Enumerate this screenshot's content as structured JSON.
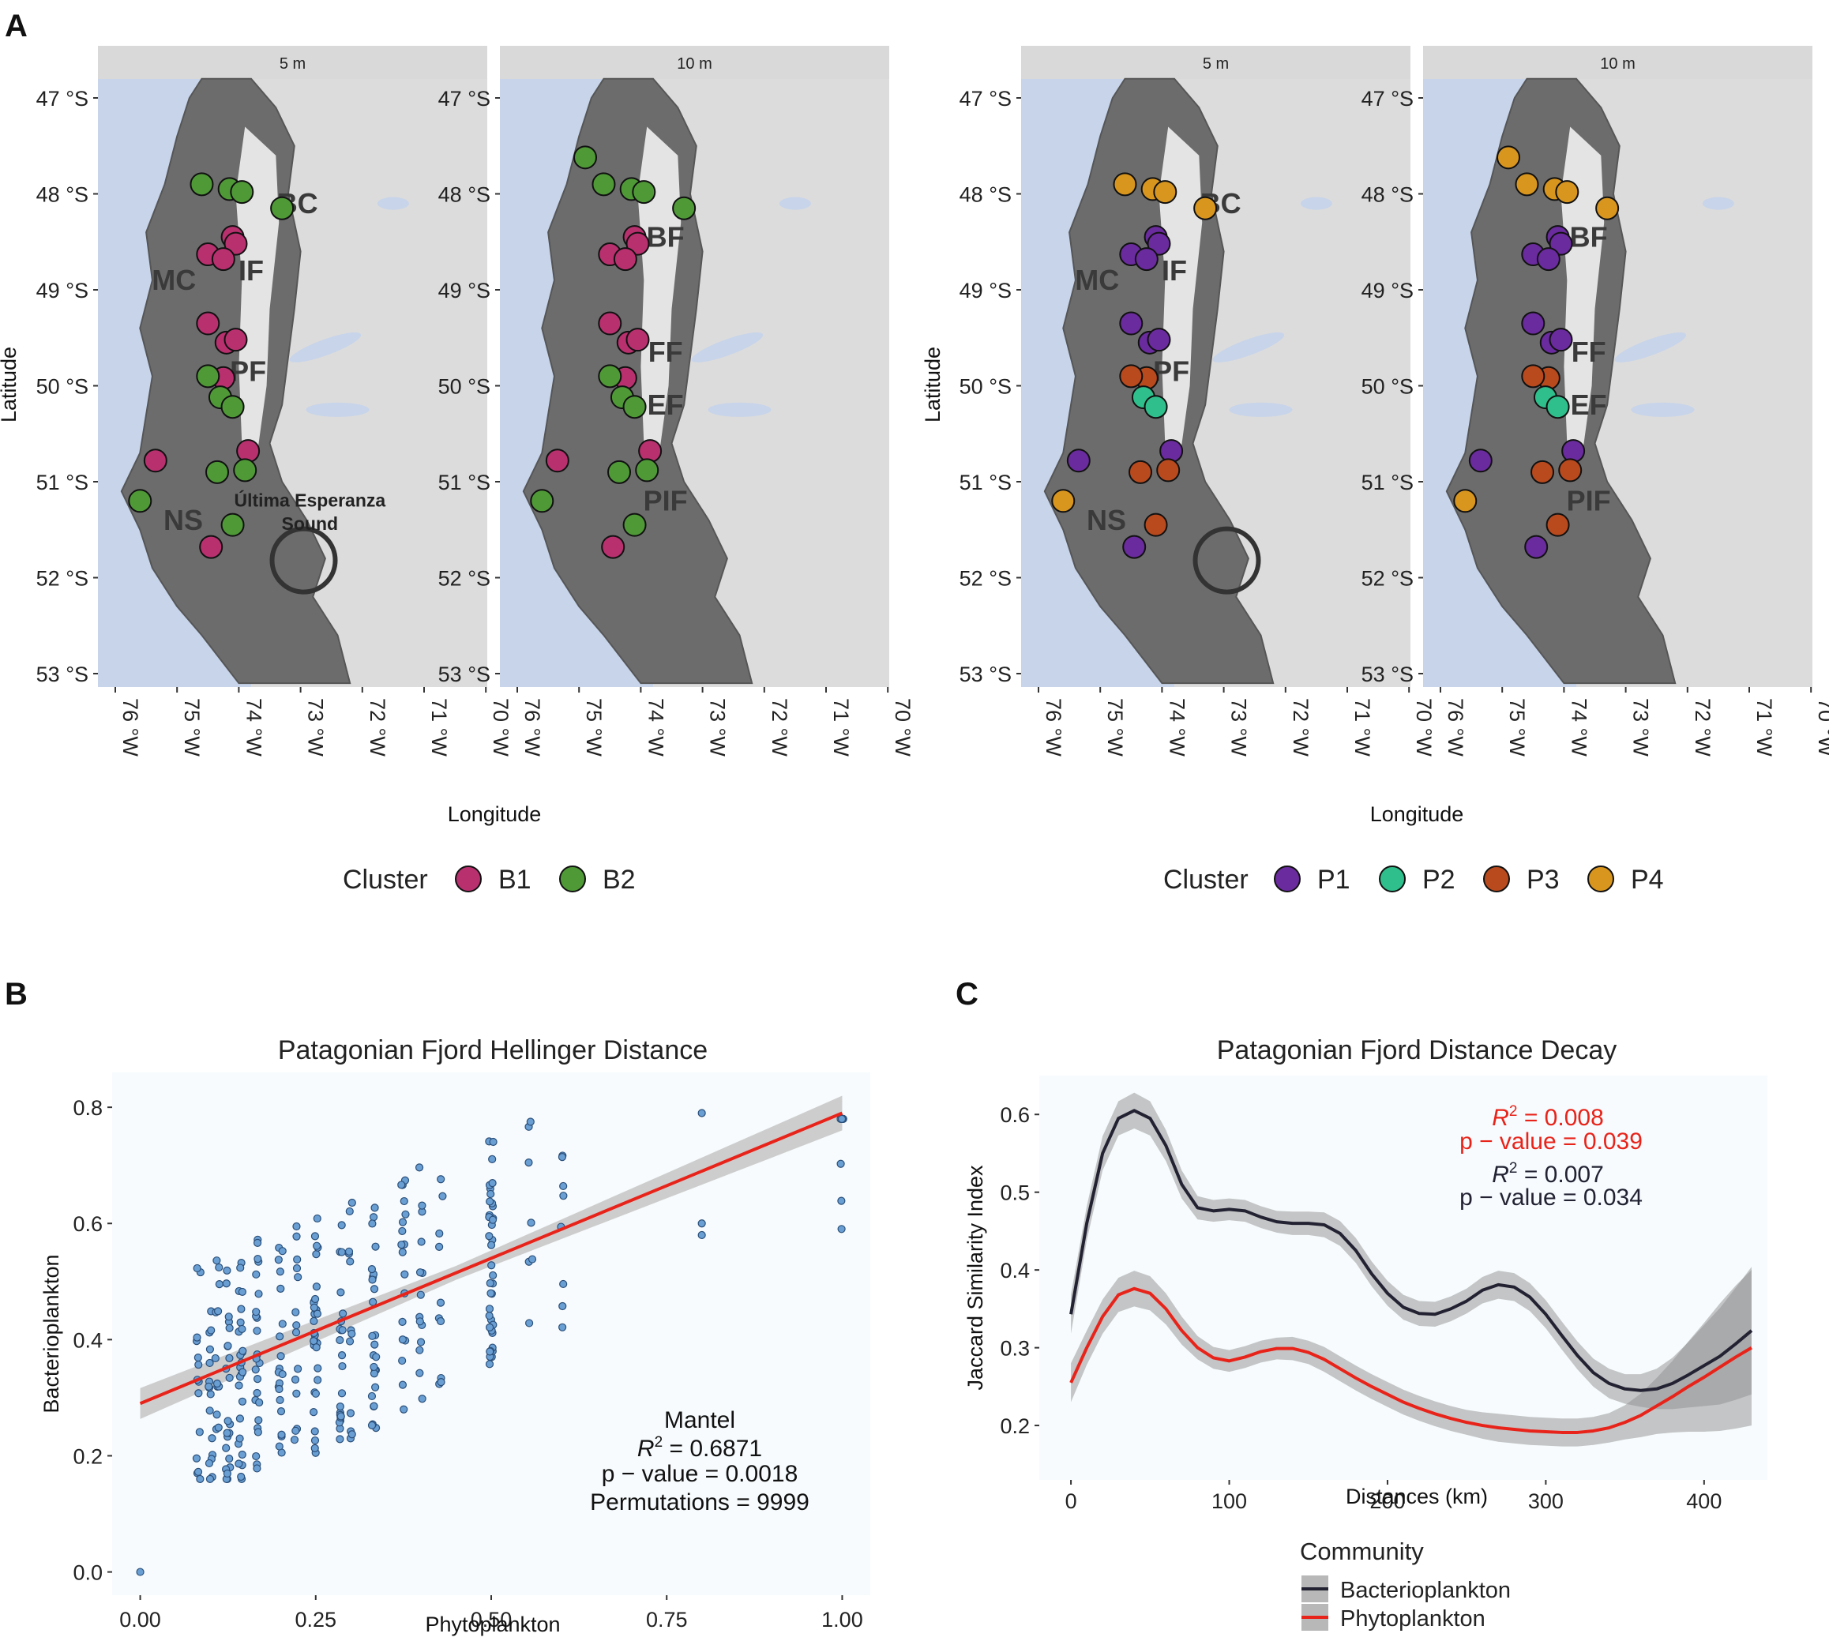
{
  "figure": {
    "letters": {
      "a": "A",
      "b": "B",
      "c": "C"
    }
  },
  "panel_a": {
    "strips": [
      "5 m",
      "10 m"
    ],
    "lat_ticks": [
      "47 °S",
      "48 °S",
      "49 °S",
      "50 °S",
      "51 °S",
      "52 °S",
      "53 °S"
    ],
    "lon_ticks": [
      "76 °W",
      "75 °W",
      "74 °W",
      "73 °W",
      "72 °W",
      "71 °W",
      "70 °W"
    ],
    "xlabel": "Longitude",
    "ylabel": "Latitude",
    "area_labels": {
      "BC": "BC",
      "IF": "IF",
      "MC": "MC",
      "PF": "PF",
      "NS": "NS",
      "BF": "BF",
      "FF": "FF",
      "EF": "EF",
      "PIF": "PIF",
      "sound1": "Última Esperanza",
      "sound2": "Sound"
    },
    "bacteria_legend": {
      "title": "Cluster",
      "items": [
        {
          "label": "B1",
          "color": "#b9306f"
        },
        {
          "label": "B2",
          "color": "#4f9a37"
        }
      ]
    },
    "phyto_legend": {
      "title": "Cluster",
      "items": [
        {
          "label": "P1",
          "color": "#6a2b9e"
        },
        {
          "label": "P2",
          "color": "#2fbf8c"
        },
        {
          "label": "P3",
          "color": "#b94a1e"
        },
        {
          "label": "P4",
          "color": "#d9961f"
        }
      ]
    },
    "stations": [
      {
        "lon": -74.6,
        "lat": -47.9,
        "b": "B2",
        "p": "P4"
      },
      {
        "lon": -74.15,
        "lat": -47.95,
        "b": "B2",
        "p": "P4"
      },
      {
        "lon": -73.95,
        "lat": -47.98,
        "b": "B2",
        "p": "P4"
      },
      {
        "lon": -73.3,
        "lat": -48.15,
        "b": "B2",
        "p": "P4"
      },
      {
        "lon": -74.1,
        "lat": -48.45,
        "b": "B1",
        "p": "P1"
      },
      {
        "lon": -74.05,
        "lat": -48.52,
        "b": "B1",
        "p": "P1"
      },
      {
        "lon": -74.5,
        "lat": -48.63,
        "b": "B1",
        "p": "P1"
      },
      {
        "lon": -74.25,
        "lat": -48.68,
        "b": "B1",
        "p": "P1"
      },
      {
        "lon": -74.5,
        "lat": -49.35,
        "b": "B1",
        "p": "P1"
      },
      {
        "lon": -74.2,
        "lat": -49.55,
        "b": "B1",
        "p": "P1"
      },
      {
        "lon": -74.05,
        "lat": -49.52,
        "b": "B1",
        "p": "P1"
      },
      {
        "lon": -74.25,
        "lat": -49.92,
        "b": "B1",
        "p": "P3"
      },
      {
        "lon": -74.5,
        "lat": -49.9,
        "b": "B2",
        "p": "P3"
      },
      {
        "lon": -74.3,
        "lat": -50.12,
        "b": "B2",
        "p": "P2"
      },
      {
        "lon": -74.1,
        "lat": -50.22,
        "b": "B2",
        "p": "P2"
      },
      {
        "lon": -75.35,
        "lat": -50.78,
        "b": "B1",
        "p": "P1"
      },
      {
        "lon": -73.85,
        "lat": -50.68,
        "b": "B1",
        "p": "P1"
      },
      {
        "lon": -74.35,
        "lat": -50.9,
        "b": "B2",
        "p": "P3"
      },
      {
        "lon": -73.9,
        "lat": -50.88,
        "b": "B2",
        "p": "P3"
      },
      {
        "lon": -75.6,
        "lat": -51.2,
        "b": "B2",
        "p": "P4"
      },
      {
        "lon": -74.1,
        "lat": -51.45,
        "b": "B2",
        "p": "P3"
      },
      {
        "lon": -74.45,
        "lat": -51.68,
        "b": "B1",
        "p": "P1"
      }
    ],
    "stations_10m": [
      {
        "lon": -74.9,
        "lat": -47.62,
        "b": "B2",
        "p": "P4"
      },
      {
        "lon": -74.6,
        "lat": -47.9,
        "b": "B2",
        "p": "P4"
      },
      {
        "lon": -74.15,
        "lat": -47.95,
        "b": "B2",
        "p": "P4"
      },
      {
        "lon": -73.95,
        "lat": -47.98,
        "b": "B2",
        "p": "P4"
      },
      {
        "lon": -73.3,
        "lat": -48.15,
        "b": "B2",
        "p": "P4"
      },
      {
        "lon": -74.1,
        "lat": -48.45,
        "b": "B1",
        "p": "P1"
      },
      {
        "lon": -74.05,
        "lat": -48.52,
        "b": "B1",
        "p": "P1"
      },
      {
        "lon": -74.5,
        "lat": -48.63,
        "b": "B1",
        "p": "P1"
      },
      {
        "lon": -74.25,
        "lat": -48.68,
        "b": "B1",
        "p": "P1"
      },
      {
        "lon": -74.5,
        "lat": -49.35,
        "b": "B1",
        "p": "P1"
      },
      {
        "lon": -74.2,
        "lat": -49.55,
        "b": "B1",
        "p": "P1"
      },
      {
        "lon": -74.05,
        "lat": -49.52,
        "b": "B1",
        "p": "P1"
      },
      {
        "lon": -74.25,
        "lat": -49.92,
        "b": "B1",
        "p": "P3"
      },
      {
        "lon": -74.5,
        "lat": -49.9,
        "b": "B2",
        "p": "P3"
      },
      {
        "lon": -74.3,
        "lat": -50.12,
        "b": "B2",
        "p": "P2"
      },
      {
        "lon": -74.1,
        "lat": -50.22,
        "b": "B2",
        "p": "P2"
      },
      {
        "lon": -75.35,
        "lat": -50.78,
        "b": "B1",
        "p": "P1"
      },
      {
        "lon": -73.85,
        "lat": -50.68,
        "b": "B1",
        "p": "P1"
      },
      {
        "lon": -74.35,
        "lat": -50.9,
        "b": "B2",
        "p": "P3"
      },
      {
        "lon": -73.9,
        "lat": -50.88,
        "b": "B2",
        "p": "P3"
      },
      {
        "lon": -75.6,
        "lat": -51.2,
        "b": "B2",
        "p": "P4"
      },
      {
        "lon": -74.1,
        "lat": -51.45,
        "b": "B2",
        "p": "P3"
      },
      {
        "lon": -74.45,
        "lat": -51.68,
        "b": "B1",
        "p": "P1"
      }
    ]
  },
  "panel_b": {
    "title": "Patagonian Fjord Hellinger Distance",
    "xlabel": "Phytoplankton",
    "ylabel": "Bacterioplankton",
    "xticks": [
      "0.00",
      "0.25",
      "0.50",
      "0.75",
      "1.00"
    ],
    "yticks": [
      "0.0",
      "0.2",
      "0.4",
      "0.6",
      "0.8"
    ],
    "stats": {
      "title": "Mantel",
      "r2_symbol": "R",
      "r2_sup": "2",
      "r2_value": " = 0.6871",
      "p_value": "p − value = 0.0018",
      "permutations": "Permutations = 9999"
    }
  },
  "panel_c": {
    "title": "Patagonian Fjord Distance Decay",
    "xlabel": "Distances (km)",
    "ylabel": "Jaccard Similarity Index",
    "xticks": [
      "0",
      "100",
      "200",
      "300",
      "400"
    ],
    "yticks": [
      "0.2",
      "0.3",
      "0.4",
      "0.5",
      "0.6"
    ],
    "stats": {
      "phyto_r2_value": " = 0.008",
      "phyto_p": "p − value = 0.039",
      "bact_r2_value": " = 0.007",
      "bact_p": "p − value = 0.034",
      "r2_symbol": "R",
      "r2_sup": "2",
      "phyto_color": "#e8231a",
      "bact_color": "#222233"
    },
    "legend_title": "Community",
    "legend_items": [
      "Bacterioplankton",
      "Phytoplankton"
    ]
  },
  "chart_data": [
    {
      "type": "scatter",
      "title": "Patagonian Fjord Hellinger Distance",
      "xlabel": "Phytoplankton",
      "ylabel": "Bacterioplankton",
      "xlim": [
        -0.04,
        1.04
      ],
      "ylim": [
        -0.04,
        0.86
      ],
      "regression": {
        "x": [
          0,
          1
        ],
        "y": [
          0.29,
          0.79
        ],
        "ci_halfwidth": [
          0.012,
          0.03
        ]
      },
      "point_color": "#6a9fd4",
      "line_color": "#e8231a",
      "outlier": [
        0.0,
        0.0
      ]
    },
    {
      "type": "line",
      "title": "Patagonian Fjord Distance Decay",
      "xlabel": "Distances (km)",
      "ylabel": "Jaccard Similarity Index",
      "xlim": [
        -20,
        440
      ],
      "ylim": [
        0.13,
        0.65
      ],
      "series": [
        {
          "name": "Bacterioplankton",
          "color": "#222233",
          "x": [
            0,
            10,
            20,
            30,
            40,
            50,
            60,
            70,
            80,
            90,
            100,
            110,
            120,
            130,
            140,
            150,
            160,
            170,
            180,
            190,
            200,
            210,
            220,
            230,
            240,
            250,
            260,
            270,
            280,
            290,
            300,
            310,
            320,
            330,
            340,
            350,
            360,
            370,
            380,
            390,
            400,
            410,
            420,
            430
          ],
          "y": [
            0.343,
            0.46,
            0.55,
            0.595,
            0.605,
            0.595,
            0.56,
            0.51,
            0.48,
            0.476,
            0.478,
            0.476,
            0.468,
            0.462,
            0.46,
            0.46,
            0.458,
            0.447,
            0.425,
            0.395,
            0.37,
            0.352,
            0.344,
            0.343,
            0.35,
            0.36,
            0.374,
            0.381,
            0.378,
            0.365,
            0.343,
            0.316,
            0.29,
            0.268,
            0.254,
            0.247,
            0.245,
            0.247,
            0.254,
            0.265,
            0.277,
            0.289,
            0.305,
            0.322
          ],
          "ci": [
            0.025,
            0.022,
            0.022,
            0.022,
            0.023,
            0.022,
            0.02,
            0.018,
            0.015,
            0.014,
            0.014,
            0.014,
            0.014,
            0.014,
            0.015,
            0.015,
            0.016,
            0.016,
            0.016,
            0.016,
            0.016,
            0.016,
            0.016,
            0.016,
            0.016,
            0.016,
            0.017,
            0.018,
            0.018,
            0.018,
            0.018,
            0.018,
            0.018,
            0.018,
            0.019,
            0.019,
            0.021,
            0.026,
            0.033,
            0.042,
            0.052,
            0.062,
            0.072,
            0.082
          ]
        },
        {
          "name": "Phytoplankton",
          "color": "#e8231a",
          "x": [
            0,
            10,
            20,
            30,
            40,
            50,
            60,
            70,
            80,
            90,
            100,
            110,
            120,
            130,
            140,
            150,
            160,
            170,
            180,
            190,
            200,
            210,
            220,
            230,
            240,
            250,
            260,
            270,
            280,
            290,
            300,
            310,
            320,
            330,
            340,
            350,
            360,
            370,
            380,
            390,
            400,
            410,
            420,
            430
          ],
          "y": [
            0.255,
            0.3,
            0.34,
            0.368,
            0.376,
            0.37,
            0.35,
            0.322,
            0.3,
            0.287,
            0.283,
            0.288,
            0.295,
            0.299,
            0.299,
            0.294,
            0.285,
            0.273,
            0.261,
            0.25,
            0.24,
            0.23,
            0.222,
            0.215,
            0.209,
            0.204,
            0.2,
            0.197,
            0.195,
            0.193,
            0.192,
            0.191,
            0.191,
            0.193,
            0.197,
            0.204,
            0.213,
            0.225,
            0.237,
            0.25,
            0.262,
            0.275,
            0.288,
            0.3
          ],
          "ci": [
            0.025,
            0.022,
            0.022,
            0.022,
            0.023,
            0.022,
            0.02,
            0.018,
            0.015,
            0.014,
            0.014,
            0.014,
            0.014,
            0.014,
            0.015,
            0.015,
            0.016,
            0.016,
            0.016,
            0.016,
            0.016,
            0.016,
            0.016,
            0.016,
            0.016,
            0.016,
            0.017,
            0.018,
            0.018,
            0.018,
            0.018,
            0.018,
            0.018,
            0.018,
            0.019,
            0.022,
            0.028,
            0.036,
            0.046,
            0.058,
            0.07,
            0.082,
            0.092,
            0.1
          ]
        }
      ]
    }
  ]
}
